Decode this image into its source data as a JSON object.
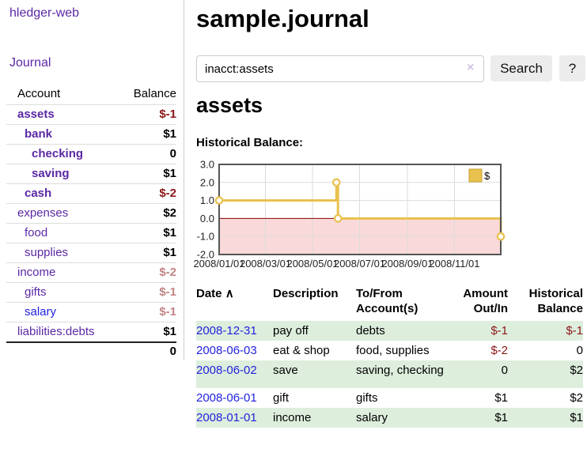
{
  "sidebar": {
    "app_title": "hledger-web",
    "journal_link": "Journal",
    "accounts": {
      "header": {
        "account": "Account",
        "balance": "Balance"
      },
      "rows": [
        {
          "name": "assets",
          "balance": "$-1"
        },
        {
          "name": "bank",
          "balance": "$1"
        },
        {
          "name": "checking",
          "balance": "0"
        },
        {
          "name": "saving",
          "balance": "$1"
        },
        {
          "name": "cash",
          "balance": "$-2"
        },
        {
          "name": "expenses",
          "balance": "$2"
        },
        {
          "name": "food",
          "balance": "$1"
        },
        {
          "name": "supplies",
          "balance": "$1"
        },
        {
          "name": "income",
          "balance": "$-2"
        },
        {
          "name": "gifts",
          "balance": "$-1"
        },
        {
          "name": "salary",
          "balance": "$-1"
        },
        {
          "name": "liabilities:debts",
          "balance": "$1"
        }
      ],
      "total": "0"
    }
  },
  "main": {
    "title": "sample.journal",
    "search": {
      "value": "inacct:assets",
      "clear": "×",
      "search_button": "Search",
      "help_button": "?"
    },
    "account_title": "assets",
    "chart_label": "Historical Balance:"
  },
  "chart_data": {
    "type": "line",
    "step": true,
    "title": "Historical Balance of assets",
    "series": [
      {
        "name": "$",
        "points": [
          [
            "2008-01-01",
            1.0
          ],
          [
            "2008-06-01",
            2.0
          ],
          [
            "2008-06-03",
            0.0
          ],
          [
            "2008-12-31",
            -1.0
          ]
        ]
      }
    ],
    "ylim": [
      -2,
      3
    ],
    "yticks": [
      {
        "v": 3,
        "label": "3.0"
      },
      {
        "v": 2,
        "label": "2.0"
      },
      {
        "v": 1,
        "label": "1.0"
      },
      {
        "v": 0,
        "label": "0.0"
      },
      {
        "v": -1,
        "label": "-1.0"
      },
      {
        "v": -2,
        "label": "-2.0"
      }
    ],
    "x_start": "2008-01-01",
    "x_end": "2008-12-31",
    "xticks": [
      {
        "date": "2008-01-01",
        "label": "2008/01/01"
      },
      {
        "date": "2008-03-01",
        "label": "2008/03/01"
      },
      {
        "date": "2008-05-01",
        "label": "2008/05/01"
      },
      {
        "date": "2008-07-01",
        "label": "2008/07/01"
      },
      {
        "date": "2008-09-01",
        "label": "2008/09/01"
      },
      {
        "date": "2008-11-01",
        "label": "2008/11/01"
      }
    ],
    "legend": {
      "label": "$",
      "position": "top-right"
    },
    "grid": true,
    "colors": {
      "line": "#e8c14e",
      "swatch_border": "#c9a22e",
      "marker_fill": "#ffffff",
      "negative_region": "#f9d9d9",
      "zero_line": "#8b0000",
      "grid": "#dcdcdc",
      "border": "#555555",
      "tick_text": "#222222"
    }
  },
  "register": {
    "headers": {
      "date": "Date",
      "sort_indicator": "∧",
      "description": "Description",
      "accounts_l1": "To/From",
      "accounts_l2": "Account(s)",
      "amount_l1": "Amount",
      "amount_l2": "Out/In",
      "balance_l1": "Historical",
      "balance_l2": "Balance"
    },
    "rows": [
      {
        "date": "2008-12-31",
        "description": "pay off",
        "accounts": "debts",
        "amount": "$-1",
        "balance": "$-1"
      },
      {
        "date": "2008-06-03",
        "description": "eat & shop",
        "accounts": "food, supplies",
        "amount": "$-2",
        "balance": "0"
      },
      {
        "date": "2008-06-02",
        "description": "save",
        "accounts": "saving, checking",
        "amount": "0",
        "balance": "$2"
      },
      {
        "date": "2008-06-01",
        "description": "gift",
        "accounts": "gifts",
        "amount": "$1",
        "balance": "$2"
      },
      {
        "date": "2008-01-01",
        "description": "income",
        "accounts": "salary",
        "amount": "$1",
        "balance": "$1"
      }
    ]
  }
}
